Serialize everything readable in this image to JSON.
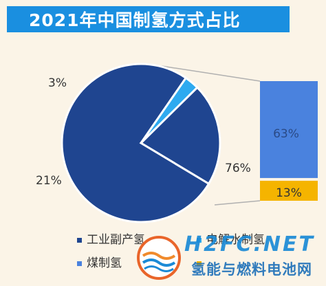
{
  "title": "2021年中国制氢方式占比",
  "chart_data": {
    "type": "pie",
    "title": "2021年中国制氢方式占比",
    "slices": [
      {
        "name": "工业副产氢",
        "value": 76,
        "label": "76%",
        "color": "#1f4590"
      },
      {
        "name": "电解水制氢",
        "value": 3,
        "label": "3%",
        "color": "#2eaaf0"
      },
      {
        "name": "",
        "value": 21,
        "label": "21%",
        "color": "#1f4590"
      }
    ],
    "breakdown": {
      "of_slice_label": "76%",
      "segments": [
        {
          "name": "煤制氢",
          "value": 63,
          "label": "63%",
          "color": "#4a82de"
        },
        {
          "name": "",
          "value": 13,
          "label": "13%",
          "color": "#f5b400"
        }
      ]
    },
    "legend": {
      "placement": "bottom",
      "items": [
        {
          "label": "工业副产氢",
          "color": "#1f4590"
        },
        {
          "label": "电解水制氢",
          "color": "#2eaaf0"
        },
        {
          "label": "煤制氢",
          "color": "#4a82de"
        },
        {
          "label": "",
          "color": "#f5b400"
        }
      ]
    }
  },
  "watermark": {
    "domain": "H2FC.NET",
    "name": "氢能与燃料电池网"
  }
}
